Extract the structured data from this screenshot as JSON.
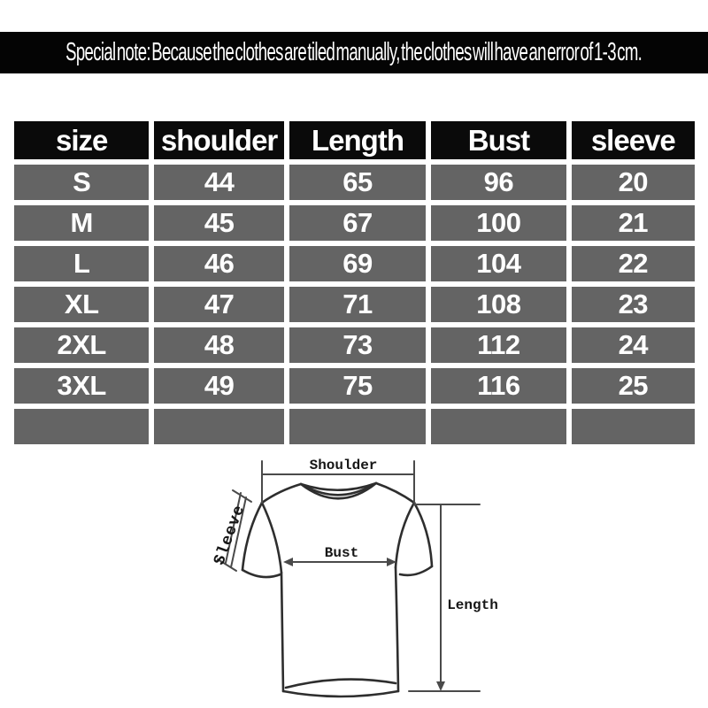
{
  "banner": {
    "text": "Special note: Because the clothes are tiled manually, the clothes will have an error of 1-3 cm."
  },
  "size_table": {
    "headers": [
      "size",
      "shoulder",
      "Length",
      "Bust",
      "sleeve"
    ],
    "rows": [
      [
        "S",
        "44",
        "65",
        "96",
        "20"
      ],
      [
        "M",
        "45",
        "67",
        "100",
        "21"
      ],
      [
        "L",
        "46",
        "69",
        "104",
        "22"
      ],
      [
        "XL",
        "47",
        "71",
        "108",
        "23"
      ],
      [
        "2XL",
        "48",
        "73",
        "112",
        "24"
      ],
      [
        "3XL",
        "49",
        "75",
        "116",
        "25"
      ],
      [
        "",
        "",
        "",
        "",
        ""
      ]
    ]
  },
  "chart_data": {
    "type": "table",
    "title": "Garment size chart (cm)",
    "columns": [
      "size",
      "shoulder",
      "Length",
      "Bust",
      "sleeve"
    ],
    "rows": [
      {
        "size": "S",
        "shoulder": 44,
        "Length": 65,
        "Bust": 96,
        "sleeve": 20
      },
      {
        "size": "M",
        "shoulder": 45,
        "Length": 67,
        "Bust": 100,
        "sleeve": 21
      },
      {
        "size": "L",
        "shoulder": 46,
        "Length": 69,
        "Bust": 104,
        "sleeve": 22
      },
      {
        "size": "XL",
        "shoulder": 47,
        "Length": 71,
        "Bust": 108,
        "sleeve": 23
      },
      {
        "size": "2XL",
        "shoulder": 48,
        "Length": 73,
        "Bust": 112,
        "sleeve": 24
      },
      {
        "size": "3XL",
        "shoulder": 49,
        "Length": 75,
        "Bust": 116,
        "sleeve": 25
      }
    ]
  },
  "diagram": {
    "labels": {
      "shoulder": "Shoulder",
      "sleeve": "Sleeve",
      "bust": "Bust",
      "length": "Length"
    }
  },
  "colors": {
    "banner_bg": "#040404",
    "header_bg": "#0a0a0a",
    "cell_bg": "#646464",
    "cell_text": "#ffffff",
    "line": "#3a3a3a"
  }
}
